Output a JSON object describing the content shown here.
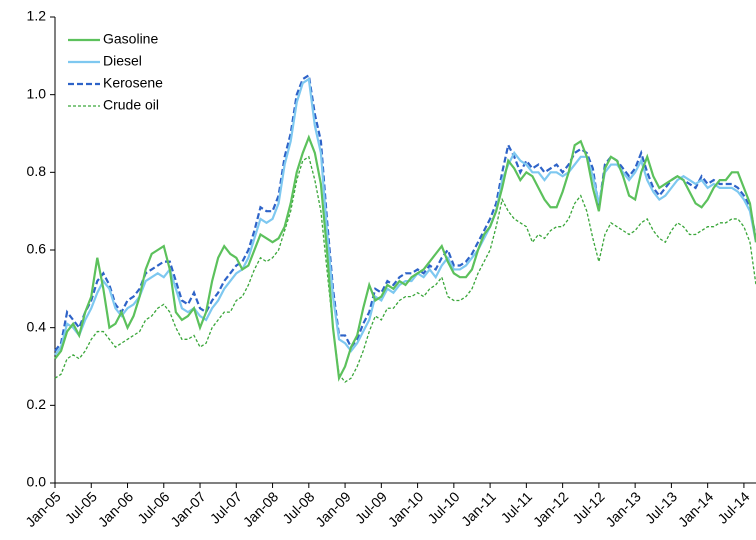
{
  "chart_data": {
    "type": "line",
    "categories": [
      "Jan-05",
      null,
      null,
      null,
      null,
      null,
      "Jul-05",
      null,
      null,
      null,
      null,
      null,
      "Jan-06",
      null,
      null,
      null,
      null,
      null,
      "Jul-06",
      null,
      null,
      null,
      null,
      null,
      "Jan-07",
      null,
      null,
      null,
      null,
      null,
      "Jul-07",
      null,
      null,
      null,
      null,
      null,
      "Jan-08",
      null,
      null,
      null,
      null,
      null,
      "Jul-08",
      null,
      null,
      null,
      null,
      null,
      "Jan-09",
      null,
      null,
      null,
      null,
      null,
      "Jul-09",
      null,
      null,
      null,
      null,
      null,
      "Jan-10",
      null,
      null,
      null,
      null,
      null,
      "Jul-10",
      null,
      null,
      null,
      null,
      null,
      "Jan-11",
      null,
      null,
      null,
      null,
      null,
      "Jul-11",
      null,
      null,
      null,
      null,
      null,
      "Jan-12",
      null,
      null,
      null,
      null,
      null,
      "Jul-12",
      null,
      null,
      null,
      null,
      null,
      "Jan-13",
      null,
      null,
      null,
      null,
      null,
      "Jul-13",
      null,
      null,
      null,
      null,
      null,
      "Jan-14",
      null,
      null,
      null,
      null,
      null,
      "Jul-14",
      null,
      null
    ],
    "series": [
      {
        "name": "Gasoline",
        "color": "#5cc15c",
        "dash": false,
        "values": [
          0.32,
          0.34,
          0.39,
          0.41,
          0.38,
          0.44,
          0.48,
          0.58,
          0.5,
          0.4,
          0.41,
          0.44,
          0.4,
          0.43,
          0.48,
          0.55,
          0.59,
          0.6,
          0.61,
          0.55,
          0.44,
          0.42,
          0.43,
          0.45,
          0.4,
          0.44,
          0.52,
          0.58,
          0.61,
          0.59,
          0.58,
          0.55,
          0.56,
          0.6,
          0.64,
          0.63,
          0.62,
          0.63,
          0.66,
          0.72,
          0.8,
          0.85,
          0.89,
          0.85,
          0.77,
          0.6,
          0.4,
          0.27,
          0.3,
          0.35,
          0.38,
          0.45,
          0.51,
          0.47,
          0.48,
          0.51,
          0.5,
          0.52,
          0.51,
          0.53,
          0.54,
          0.55,
          0.57,
          0.59,
          0.61,
          0.57,
          0.54,
          0.53,
          0.53,
          0.55,
          0.6,
          0.64,
          0.66,
          0.7,
          0.76,
          0.83,
          0.81,
          0.78,
          0.8,
          0.79,
          0.76,
          0.73,
          0.71,
          0.71,
          0.75,
          0.8,
          0.87,
          0.88,
          0.84,
          0.76,
          0.7,
          0.81,
          0.84,
          0.83,
          0.79,
          0.74,
          0.73,
          0.8,
          0.84,
          0.79,
          0.76,
          0.77,
          0.78,
          0.79,
          0.78,
          0.75,
          0.72,
          0.71,
          0.73,
          0.76,
          0.78,
          0.78,
          0.8,
          0.8,
          0.76,
          0.72,
          0.62
        ]
      },
      {
        "name": "Diesel",
        "color": "#7ec8f0",
        "dash": false,
        "values": [
          0.33,
          0.35,
          0.41,
          0.4,
          0.38,
          0.42,
          0.45,
          0.49,
          0.52,
          0.5,
          0.45,
          0.43,
          0.45,
          0.46,
          0.48,
          0.52,
          0.53,
          0.54,
          0.53,
          0.55,
          0.5,
          0.45,
          0.44,
          0.45,
          0.43,
          0.42,
          0.45,
          0.47,
          0.5,
          0.52,
          0.54,
          0.55,
          0.58,
          0.63,
          0.68,
          0.67,
          0.68,
          0.72,
          0.82,
          0.88,
          0.98,
          1.03,
          1.04,
          0.92,
          0.85,
          0.65,
          0.48,
          0.37,
          0.36,
          0.34,
          0.36,
          0.39,
          0.42,
          0.48,
          0.47,
          0.5,
          0.49,
          0.51,
          0.52,
          0.52,
          0.54,
          0.53,
          0.55,
          0.53,
          0.56,
          0.58,
          0.55,
          0.55,
          0.56,
          0.58,
          0.6,
          0.63,
          0.66,
          0.7,
          0.78,
          0.82,
          0.85,
          0.83,
          0.82,
          0.8,
          0.8,
          0.78,
          0.8,
          0.8,
          0.79,
          0.8,
          0.82,
          0.84,
          0.84,
          0.79,
          0.72,
          0.8,
          0.82,
          0.82,
          0.8,
          0.78,
          0.8,
          0.83,
          0.78,
          0.75,
          0.73,
          0.74,
          0.76,
          0.78,
          0.79,
          0.78,
          0.77,
          0.78,
          0.76,
          0.77,
          0.76,
          0.76,
          0.76,
          0.75,
          0.73,
          0.7,
          0.62
        ]
      },
      {
        "name": "Kerosene",
        "color": "#2e63c8",
        "dash": true,
        "values": [
          0.34,
          0.36,
          0.44,
          0.42,
          0.4,
          0.44,
          0.47,
          0.52,
          0.54,
          0.51,
          0.46,
          0.44,
          0.47,
          0.48,
          0.5,
          0.54,
          0.55,
          0.56,
          0.57,
          0.57,
          0.52,
          0.47,
          0.46,
          0.49,
          0.45,
          0.44,
          0.47,
          0.49,
          0.52,
          0.54,
          0.56,
          0.57,
          0.6,
          0.65,
          0.71,
          0.7,
          0.7,
          0.74,
          0.84,
          0.9,
          1.0,
          1.04,
          1.05,
          0.95,
          0.88,
          0.68,
          0.5,
          0.38,
          0.38,
          0.35,
          0.37,
          0.41,
          0.44,
          0.5,
          0.49,
          0.52,
          0.51,
          0.53,
          0.54,
          0.54,
          0.55,
          0.54,
          0.56,
          0.55,
          0.58,
          0.6,
          0.56,
          0.56,
          0.57,
          0.59,
          0.62,
          0.65,
          0.68,
          0.72,
          0.8,
          0.87,
          0.84,
          0.8,
          0.83,
          0.81,
          0.82,
          0.8,
          0.81,
          0.82,
          0.8,
          0.82,
          0.85,
          0.86,
          0.85,
          0.81,
          0.71,
          0.82,
          0.84,
          0.83,
          0.81,
          0.79,
          0.81,
          0.85,
          0.8,
          0.76,
          0.74,
          0.76,
          0.78,
          0.79,
          0.78,
          0.77,
          0.76,
          0.79,
          0.77,
          0.78,
          0.77,
          0.77,
          0.77,
          0.76,
          0.74,
          0.71,
          0.63
        ]
      },
      {
        "name": "Crude oil",
        "color": "#3aa63a",
        "dash": true,
        "values": [
          0.27,
          0.28,
          0.32,
          0.33,
          0.32,
          0.34,
          0.37,
          0.39,
          0.39,
          0.37,
          0.35,
          0.36,
          0.37,
          0.38,
          0.39,
          0.42,
          0.43,
          0.45,
          0.46,
          0.44,
          0.4,
          0.37,
          0.37,
          0.38,
          0.35,
          0.36,
          0.4,
          0.42,
          0.44,
          0.44,
          0.47,
          0.48,
          0.51,
          0.55,
          0.58,
          0.57,
          0.58,
          0.6,
          0.65,
          0.7,
          0.78,
          0.83,
          0.84,
          0.78,
          0.7,
          0.55,
          0.4,
          0.28,
          0.26,
          0.27,
          0.3,
          0.34,
          0.39,
          0.43,
          0.42,
          0.45,
          0.45,
          0.47,
          0.48,
          0.48,
          0.49,
          0.48,
          0.5,
          0.51,
          0.53,
          0.48,
          0.47,
          0.47,
          0.48,
          0.5,
          0.54,
          0.57,
          0.6,
          0.66,
          0.73,
          0.7,
          0.68,
          0.67,
          0.66,
          0.62,
          0.64,
          0.63,
          0.65,
          0.66,
          0.66,
          0.68,
          0.72,
          0.74,
          0.7,
          0.63,
          0.57,
          0.64,
          0.67,
          0.66,
          0.65,
          0.64,
          0.65,
          0.67,
          0.68,
          0.65,
          0.63,
          0.62,
          0.65,
          0.67,
          0.66,
          0.64,
          0.64,
          0.65,
          0.66,
          0.66,
          0.67,
          0.67,
          0.68,
          0.68,
          0.66,
          0.62,
          0.51
        ]
      }
    ],
    "ylim": [
      0,
      1.2
    ],
    "yticks": [
      {
        "value": 0,
        "label": "0.0"
      },
      0.2,
      0.4,
      0.6,
      0.8,
      {
        "value": 1,
        "label": "1.0"
      },
      1.2
    ],
    "grid": false,
    "legend": "top-left"
  }
}
